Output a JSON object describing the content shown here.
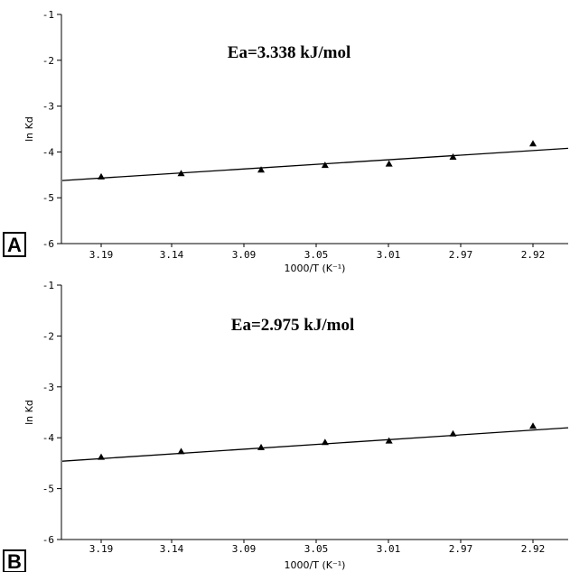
{
  "chart_data": [
    {
      "type": "scatter",
      "panel_label": "A",
      "annotation": "Ea=3.338 kJ/mol",
      "xlabel": "1000/T (K⁻¹)",
      "ylabel": "ln Kd",
      "x_tick_labels": [
        "3.19",
        "3.14",
        "3.09",
        "3.05",
        "3.01",
        "2.97",
        "2.92"
      ],
      "y_tick_labels": [
        "-1",
        "-2",
        "-3",
        "-4",
        "-5",
        "-6"
      ],
      "ylim": [
        -6,
        -1
      ],
      "x_reversed": true,
      "grid": false,
      "series": [
        {
          "x": [
            3.19,
            3.14,
            3.09,
            3.05,
            3.01,
            2.97,
            2.92
          ],
          "y": [
            -4.54,
            -4.47,
            -4.39,
            -4.29,
            -4.26,
            -4.11,
            -3.82
          ]
        }
      ],
      "fit_line": {
        "x": [
          3.19,
          2.92
        ],
        "y": [
          -4.57,
          -3.97
        ]
      }
    },
    {
      "type": "scatter",
      "panel_label": "B",
      "annotation": "Ea=2.975 kJ/mol",
      "xlabel": "1000/T (K⁻¹)",
      "ylabel": "ln Kd",
      "x_tick_labels": [
        "3.19",
        "3.14",
        "3.09",
        "3.05",
        "3.01",
        "2.97",
        "2.92"
      ],
      "y_tick_labels": [
        "-1",
        "-2",
        "-3",
        "-4",
        "-5",
        "-6"
      ],
      "ylim": [
        -6,
        -1
      ],
      "x_reversed": true,
      "grid": false,
      "series": [
        {
          "x": [
            3.19,
            3.14,
            3.09,
            3.05,
            3.01,
            2.97,
            2.92
          ],
          "y": [
            -4.38,
            -4.27,
            -4.19,
            -4.09,
            -4.06,
            -3.92,
            -3.77
          ]
        }
      ],
      "fit_line": {
        "x": [
          3.19,
          2.92
        ],
        "y": [
          -4.41,
          -3.85
        ]
      }
    }
  ]
}
